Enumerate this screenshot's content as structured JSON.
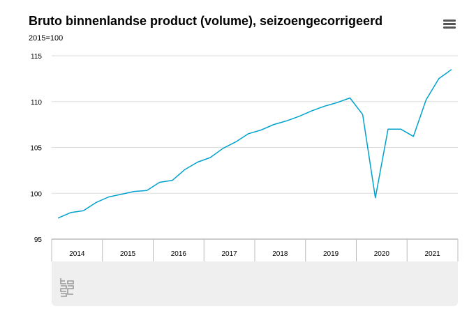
{
  "chart_data": {
    "type": "line",
    "title": "Bruto binnenlandse product (volume), seizoengecorrigeerd",
    "unit": "2015=100",
    "ylim": [
      95,
      115
    ],
    "yticks": [
      95,
      100,
      105,
      110,
      115
    ],
    "years": [
      "2014",
      "2015",
      "2016",
      "2017",
      "2018",
      "2019",
      "2020",
      "2021"
    ],
    "grid": true,
    "series": [
      {
        "color": "#00a1cd",
        "values": [
          97.3,
          97.9,
          98.1,
          99.0,
          99.6,
          99.9,
          100.2,
          100.3,
          101.2,
          101.4,
          102.6,
          103.4,
          103.9,
          104.9,
          105.6,
          106.5,
          106.9,
          107.5,
          107.9,
          108.4,
          109.0,
          109.5,
          109.9,
          110.4,
          108.6,
          99.5,
          107.0,
          107.0,
          106.2,
          110.2,
          112.5,
          113.5
        ]
      }
    ]
  }
}
